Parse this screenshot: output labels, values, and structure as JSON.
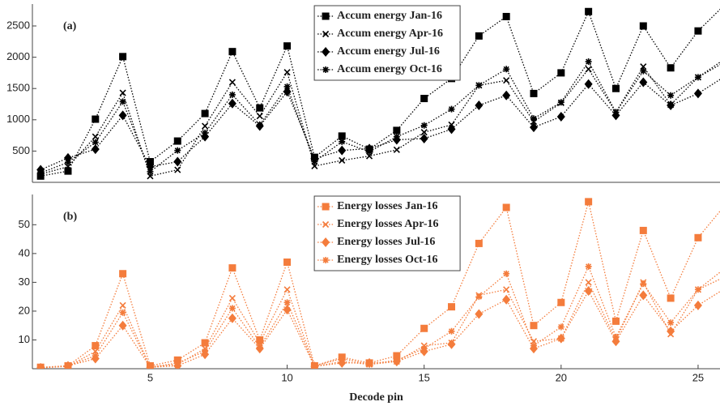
{
  "chart_data": [
    {
      "type": "line",
      "label": "(a)",
      "x": [
        1,
        2,
        3,
        4,
        5,
        6,
        7,
        8,
        9,
        10,
        11,
        12,
        13,
        14,
        15,
        16,
        17,
        18,
        19,
        20,
        21,
        22,
        23,
        24,
        25,
        26
      ],
      "xlim": [
        0.7,
        25.8
      ],
      "ylim": [
        0,
        2850
      ],
      "yticks": [
        500,
        1000,
        1500,
        2000,
        2500
      ],
      "legend": "upper center",
      "series": [
        {
          "name": "Accum energy Jan-16",
          "color": "#000000",
          "marker": "square",
          "values": [
            100,
            180,
            1010,
            2010,
            330,
            660,
            1100,
            2090,
            1190,
            2180,
            400,
            740,
            530,
            830,
            1340,
            1660,
            2340,
            2650,
            1420,
            1750,
            2730,
            1500,
            2500,
            1830,
            2420,
            2850
          ]
        },
        {
          "name": "Accum energy Apr-16",
          "color": "#000000",
          "marker": "x",
          "values": [
            130,
            250,
            730,
            1430,
            100,
            200,
            900,
            1600,
            1060,
            1760,
            260,
            350,
            420,
            520,
            800,
            920,
            1550,
            1630,
            970,
            1270,
            1810,
            1120,
            1850,
            1240,
            1680,
            1980
          ]
        },
        {
          "name": "Accum energy Jul-16",
          "color": "#000000",
          "marker": "diamond",
          "values": [
            200,
            390,
            530,
            1070,
            250,
            330,
            730,
            1260,
            900,
            1450,
            380,
            510,
            540,
            680,
            700,
            850,
            1230,
            1390,
            880,
            1050,
            1570,
            1070,
            1600,
            1230,
            1420,
            1700
          ]
        },
        {
          "name": "Accum energy Oct-16",
          "color": "#000000",
          "marker": "asterisk",
          "values": [
            150,
            320,
            640,
            1290,
            170,
            510,
            790,
            1400,
            920,
            1530,
            330,
            650,
            490,
            730,
            910,
            1170,
            1550,
            1810,
            1020,
            1280,
            1930,
            1120,
            1780,
            1390,
            1680,
            1930
          ]
        }
      ]
    },
    {
      "type": "line",
      "label": "(b)",
      "xlabel": "Decode pin",
      "x": [
        1,
        2,
        3,
        4,
        5,
        6,
        7,
        8,
        9,
        10,
        11,
        12,
        13,
        14,
        15,
        16,
        17,
        18,
        19,
        20,
        21,
        22,
        23,
        24,
        25,
        26
      ],
      "xlim": [
        0.7,
        25.8
      ],
      "xticks": [
        5,
        10,
        15,
        20,
        25
      ],
      "ylim": [
        0,
        60.5
      ],
      "yticks": [
        10,
        20,
        30,
        40,
        50
      ],
      "legend": "upper center",
      "series": [
        {
          "name": "Energy losses Jan-16",
          "color": "#f47c3c",
          "marker": "square",
          "values": [
            0.5,
            1,
            8,
            33,
            1,
            3,
            9,
            35,
            10,
            37,
            1,
            4,
            2,
            4.5,
            14,
            21.5,
            43.5,
            56,
            15,
            23,
            58,
            16.5,
            48,
            24.5,
            45.5,
            57
          ]
        },
        {
          "name": "Energy losses Apr-16",
          "color": "#f47c3c",
          "marker": "x",
          "values": [
            0.3,
            0.8,
            6,
            22,
            0.6,
            1.5,
            7,
            24.5,
            9,
            27.5,
            0.8,
            2.5,
            1.5,
            2.5,
            8,
            9,
            25.5,
            27.5,
            9.5,
            10.5,
            30,
            10,
            30,
            12,
            27.5,
            35
          ]
        },
        {
          "name": "Energy losses Jul-16",
          "color": "#f47c3c",
          "marker": "diamond",
          "values": [
            0.3,
            1,
            3.5,
            15,
            0.5,
            1,
            5,
            17.5,
            7,
            20.5,
            0.8,
            2,
            2,
            2.5,
            6,
            8.5,
            19,
            24,
            7,
            10.5,
            27,
            9.5,
            25.5,
            13,
            22,
            28
          ]
        },
        {
          "name": "Energy losses Oct-16",
          "color": "#f47c3c",
          "marker": "asterisk",
          "values": [
            0.4,
            1,
            4.5,
            19.5,
            0.5,
            2,
            6,
            21,
            7.5,
            23,
            1,
            3.5,
            1.5,
            3,
            7,
            13,
            25,
            33,
            8,
            14.5,
            35.5,
            11,
            29.5,
            16,
            27.5,
            32
          ]
        }
      ]
    }
  ]
}
